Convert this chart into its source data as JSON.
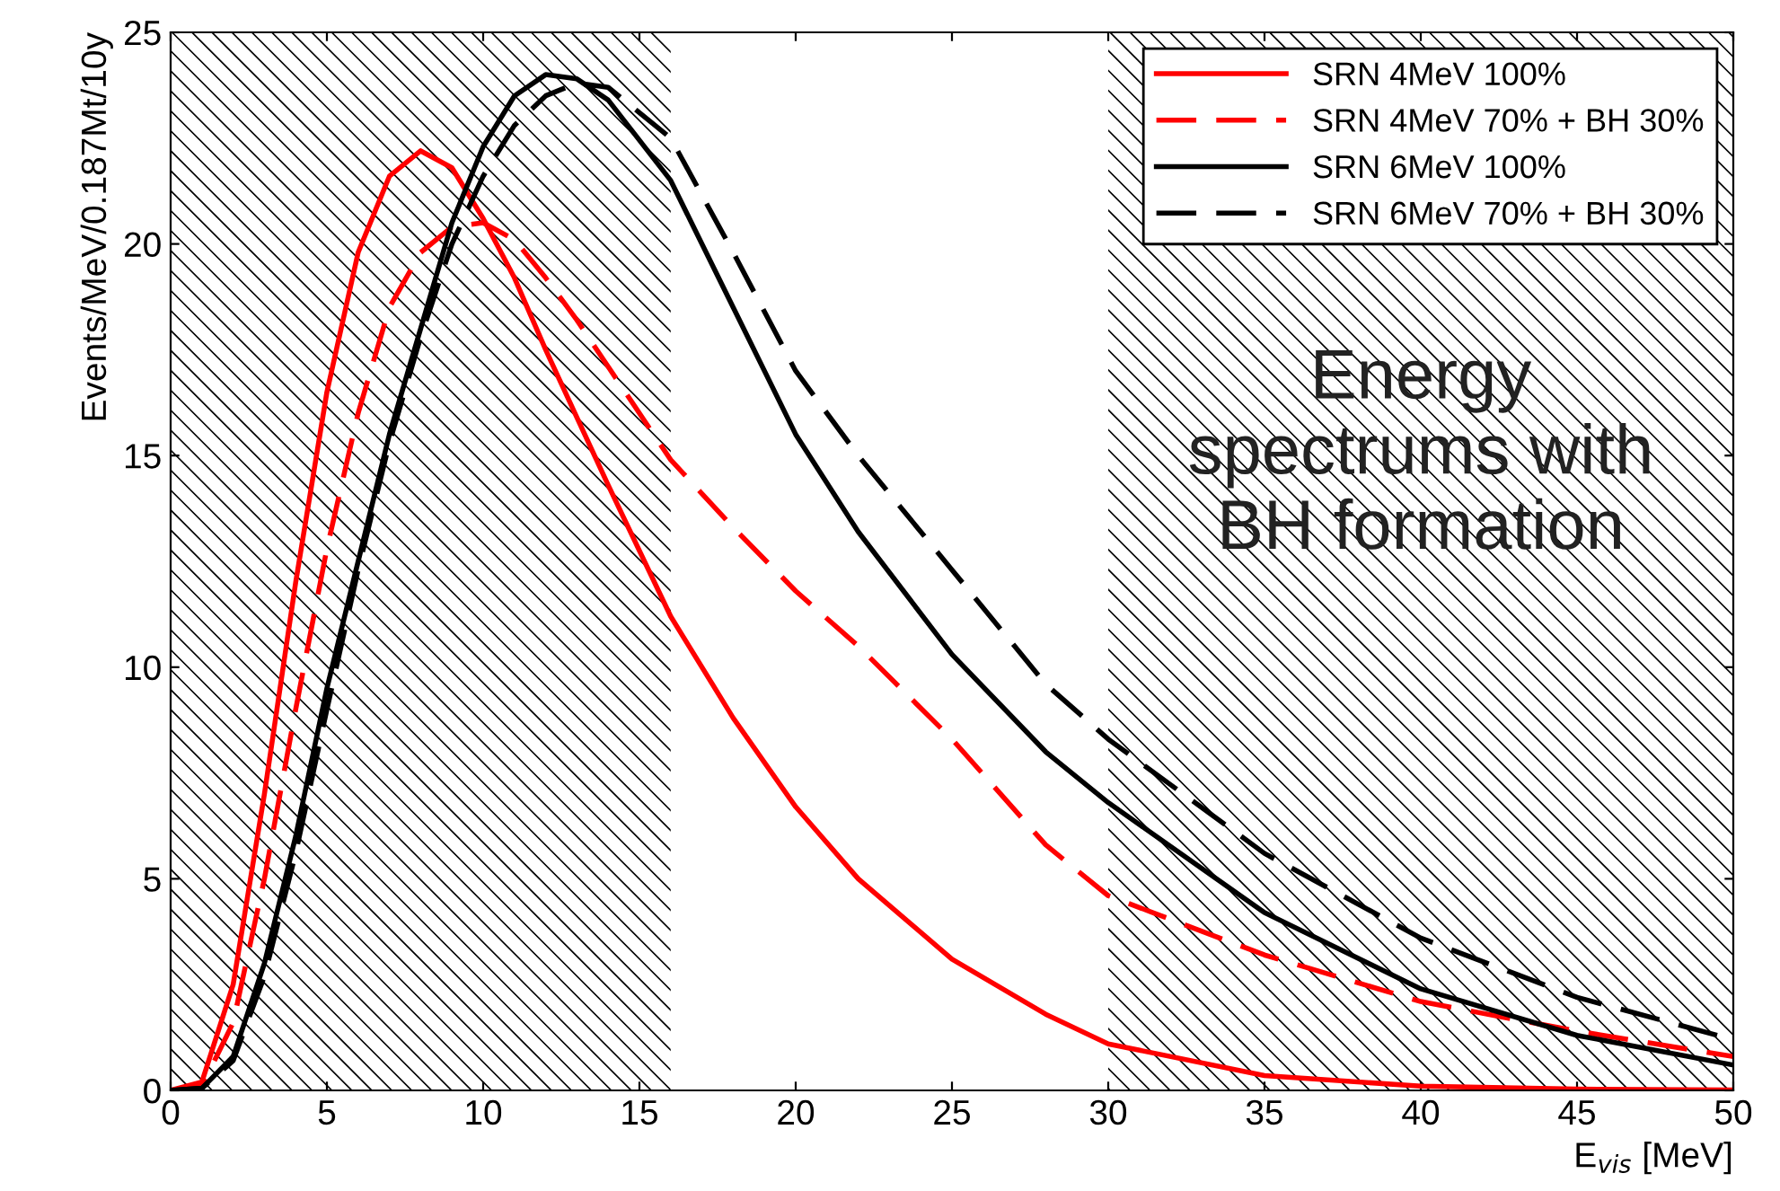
{
  "chart_data": {
    "type": "line",
    "xlabel": "E$_{vis}$ [MeV]",
    "ylabel": "Events/MeV/0.187Mt/10y",
    "x": [
      0,
      1,
      2,
      3,
      4,
      5,
      6,
      7,
      8,
      9,
      10,
      11,
      12,
      13,
      14,
      16,
      18,
      20,
      22,
      25,
      28,
      30,
      35,
      40,
      45,
      50
    ],
    "series": [
      {
        "name": "SRN 4MeV 100%",
        "color": "#ff0000",
        "line_style": "solid",
        "values": [
          0,
          0.2,
          2.5,
          7,
          12,
          16.5,
          19.8,
          21.6,
          22.2,
          21.8,
          20.6,
          19.2,
          17.5,
          15.9,
          14.3,
          11.2,
          8.8,
          6.7,
          5.0,
          3.1,
          1.8,
          1.1,
          0.35,
          0.1,
          0.03,
          0.01
        ]
      },
      {
        "name": "SRN 4MeV 70% + BH 30%",
        "color": "#ff0000",
        "line_style": "dashed",
        "values": [
          0,
          0.1,
          1.6,
          5,
          9,
          12.8,
          16,
          18.5,
          19.8,
          20.4,
          20.5,
          20.1,
          19.2,
          18.2,
          17.1,
          14.9,
          13.3,
          11.8,
          10.5,
          8.3,
          5.8,
          4.6,
          3.2,
          2.1,
          1.4,
          0.8
        ]
      },
      {
        "name": "SRN 6MeV 100%",
        "color": "#000000",
        "line_style": "solid",
        "values": [
          0,
          0.05,
          0.8,
          3,
          6,
          9.5,
          12.5,
          15.5,
          18,
          20.5,
          22.3,
          23.5,
          24.0,
          23.9,
          23.4,
          21.5,
          18.5,
          15.5,
          13.2,
          10.3,
          8.0,
          6.8,
          4.2,
          2.4,
          1.3,
          0.6
        ]
      },
      {
        "name": "SRN 6MeV 70% + BH 30%",
        "color": "#000000",
        "line_style": "dashed",
        "values": [
          0,
          0.05,
          0.7,
          2.7,
          5.6,
          9,
          12.3,
          15.3,
          17.8,
          20,
          21.6,
          22.8,
          23.5,
          23.8,
          23.7,
          22.5,
          19.8,
          17,
          15,
          12.3,
          9.6,
          8.3,
          5.6,
          3.6,
          2.2,
          1.2
        ]
      }
    ],
    "xlim": [
      0,
      50
    ],
    "ylim": [
      0,
      25
    ],
    "xticks": [
      0,
      5,
      10,
      15,
      20,
      25,
      30,
      35,
      40,
      45,
      50
    ],
    "yticks": [
      0,
      5,
      10,
      15,
      20,
      25
    ],
    "bands": [
      {
        "axis": "x",
        "from": 0,
        "to": 16,
        "color": "#000000"
      },
      {
        "axis": "x",
        "from": 30,
        "to": 50,
        "color": "#000000"
      }
    ],
    "annotations": [
      "Energy\nspectrums with\nBH formation"
    ],
    "legend": "top right",
    "grid": false
  }
}
